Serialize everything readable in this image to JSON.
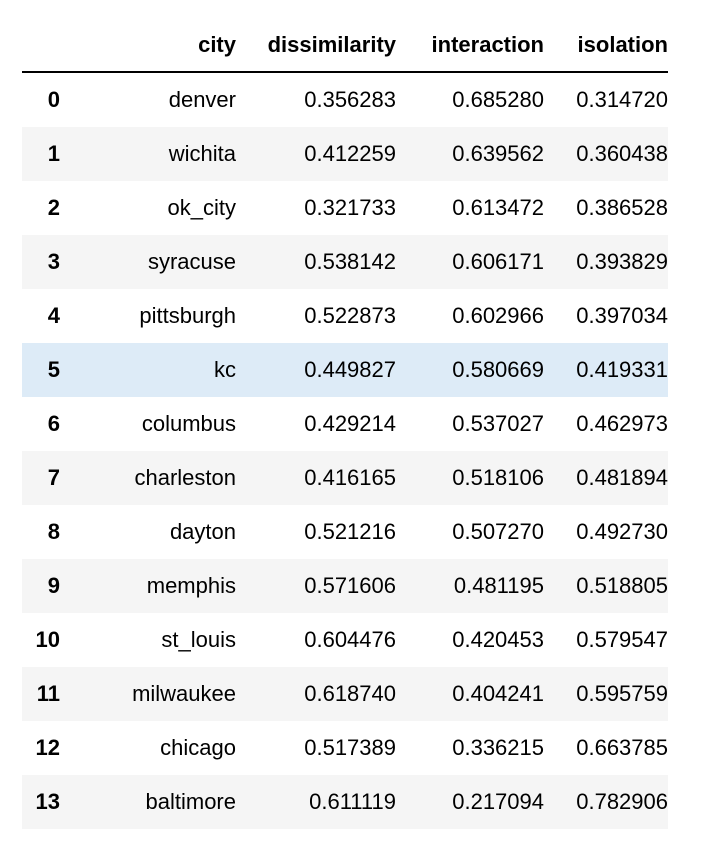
{
  "table": {
    "columns": {
      "index": "",
      "city": "city",
      "dissimilarity": "dissimilarity",
      "interaction": "interaction",
      "isolation": "isolation"
    },
    "highlighted_row": 5,
    "rows": [
      {
        "index": "0",
        "city": "denver",
        "dissimilarity": "0.356283",
        "interaction": "0.685280",
        "isolation": "0.314720"
      },
      {
        "index": "1",
        "city": "wichita",
        "dissimilarity": "0.412259",
        "interaction": "0.639562",
        "isolation": "0.360438"
      },
      {
        "index": "2",
        "city": "ok_city",
        "dissimilarity": "0.321733",
        "interaction": "0.613472",
        "isolation": "0.386528"
      },
      {
        "index": "3",
        "city": "syracuse",
        "dissimilarity": "0.538142",
        "interaction": "0.606171",
        "isolation": "0.393829"
      },
      {
        "index": "4",
        "city": "pittsburgh",
        "dissimilarity": "0.522873",
        "interaction": "0.602966",
        "isolation": "0.397034"
      },
      {
        "index": "5",
        "city": "kc",
        "dissimilarity": "0.449827",
        "interaction": "0.580669",
        "isolation": "0.419331"
      },
      {
        "index": "6",
        "city": "columbus",
        "dissimilarity": "0.429214",
        "interaction": "0.537027",
        "isolation": "0.462973"
      },
      {
        "index": "7",
        "city": "charleston",
        "dissimilarity": "0.416165",
        "interaction": "0.518106",
        "isolation": "0.481894"
      },
      {
        "index": "8",
        "city": "dayton",
        "dissimilarity": "0.521216",
        "interaction": "0.507270",
        "isolation": "0.492730"
      },
      {
        "index": "9",
        "city": "memphis",
        "dissimilarity": "0.571606",
        "interaction": "0.481195",
        "isolation": "0.518805"
      },
      {
        "index": "10",
        "city": "st_louis",
        "dissimilarity": "0.604476",
        "interaction": "0.420453",
        "isolation": "0.579547"
      },
      {
        "index": "11",
        "city": "milwaukee",
        "dissimilarity": "0.618740",
        "interaction": "0.404241",
        "isolation": "0.595759"
      },
      {
        "index": "12",
        "city": "chicago",
        "dissimilarity": "0.517389",
        "interaction": "0.336215",
        "isolation": "0.663785"
      },
      {
        "index": "13",
        "city": "baltimore",
        "dissimilarity": "0.611119",
        "interaction": "0.217094",
        "isolation": "0.782906"
      }
    ]
  }
}
